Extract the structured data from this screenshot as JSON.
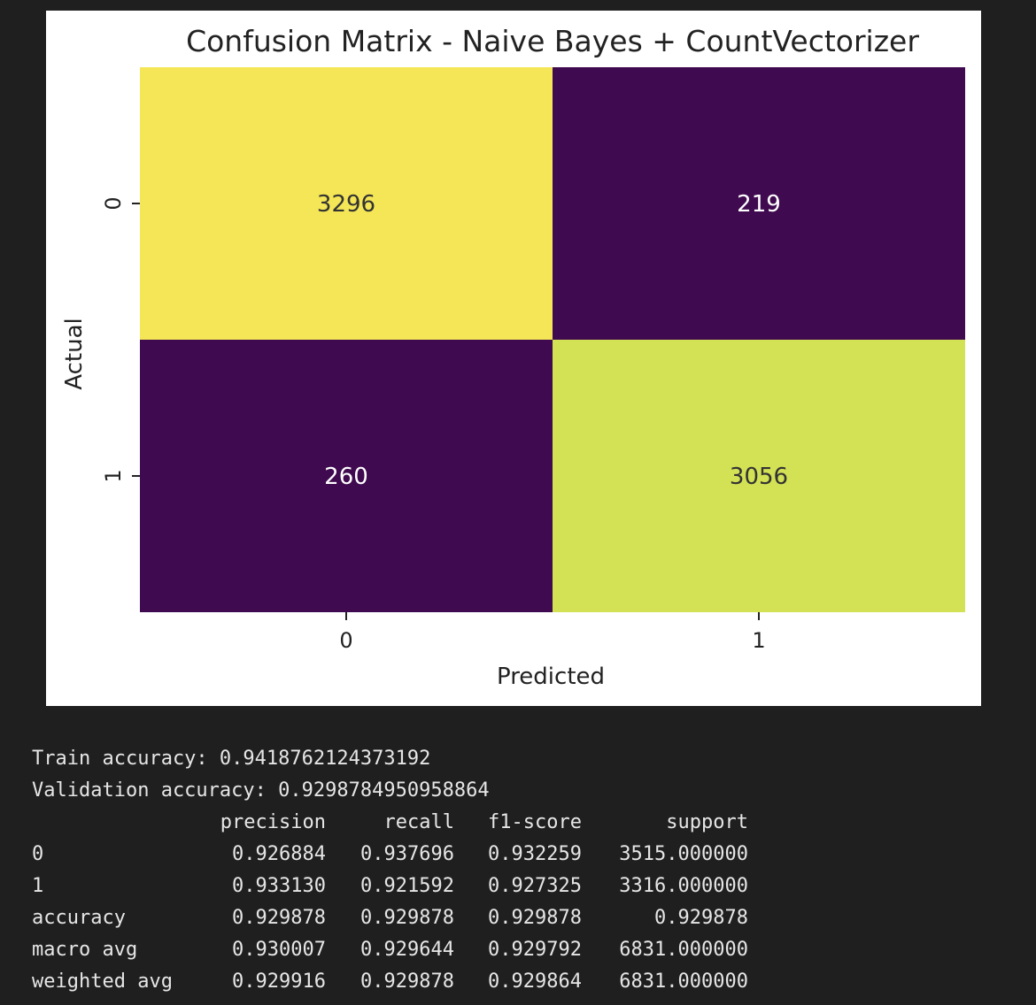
{
  "chart_data": {
    "type": "heatmap",
    "title": "Confusion Matrix - Naive Bayes + CountVectorizer",
    "xlabel": "Predicted",
    "ylabel": "Actual",
    "x_tick_labels": [
      "0",
      "1"
    ],
    "y_tick_labels": [
      "0",
      "1"
    ],
    "matrix": [
      [
        3296,
        219
      ],
      [
        260,
        3056
      ]
    ],
    "colormap": "viridis",
    "colorbar": false,
    "cell_colors": {
      "high": "#f4e656",
      "high2": "#d3e155",
      "low": "#3f0a4f"
    },
    "annotation_colors": {
      "on_light": "#333333",
      "on_dark": "#ffffff"
    }
  },
  "output": {
    "train_accuracy_text": "Train accuracy: 0.9418762124373192",
    "validation_accuracy_text": "Validation accuracy: 0.9298784950958864",
    "report": {
      "headers": [
        "precision",
        "recall",
        "f1-score",
        "support"
      ],
      "rows": [
        {
          "label": "0",
          "values": [
            "0.926884",
            "0.937696",
            "0.932259",
            "3515.000000"
          ]
        },
        {
          "label": "1",
          "values": [
            "0.933130",
            "0.921592",
            "0.927325",
            "3316.000000"
          ]
        },
        {
          "label": "accuracy",
          "values": [
            "0.929878",
            "0.929878",
            "0.929878",
            "0.929878"
          ]
        },
        {
          "label": "macro avg",
          "values": [
            "0.930007",
            "0.929644",
            "0.929792",
            "6831.000000"
          ]
        },
        {
          "label": "weighted avg",
          "values": [
            "0.929916",
            "0.929878",
            "0.929864",
            "6831.000000"
          ]
        }
      ]
    }
  }
}
